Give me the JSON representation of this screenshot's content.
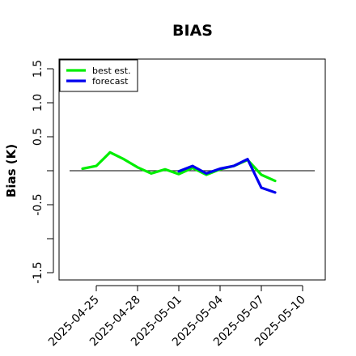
{
  "chart_data": {
    "type": "line",
    "title": "BIAS",
    "ylabel": "Bias (K)",
    "xlabel": "",
    "ylim": [
      -1.6,
      1.6
    ],
    "yticks": [
      -1.5,
      -1.0,
      -0.5,
      0.0,
      0.5,
      1.0,
      1.5
    ],
    "ytick_labels": [
      "-1.5",
      "",
      "-0.5",
      "",
      "0.5",
      "1.0",
      "1.5"
    ],
    "xlim": [
      "2025-04-22",
      "2025-05-12"
    ],
    "xticks": [
      "2025-04-25",
      "2025-04-28",
      "2025-05-01",
      "2025-05-04",
      "2025-05-07",
      "2025-05-10"
    ],
    "highlight_tick": "2025-05-01",
    "reference_line": 0.0,
    "legend_position": "top-left",
    "series": [
      {
        "name": "best est.",
        "color": "#00ee00",
        "x": [
          "2025-04-24",
          "2025-04-25",
          "2025-04-26",
          "2025-04-27",
          "2025-04-28",
          "2025-04-29",
          "2025-04-30",
          "2025-05-01",
          "2025-05-02",
          "2025-05-03",
          "2025-05-04",
          "2025-05-05",
          "2025-05-06",
          "2025-05-07",
          "2025-05-08"
        ],
        "values": [
          0.03,
          0.07,
          0.27,
          0.17,
          0.05,
          -0.04,
          0.02,
          -0.05,
          0.04,
          -0.06,
          0.02,
          0.07,
          0.16,
          -0.06,
          -0.15
        ]
      },
      {
        "name": "forecast",
        "color": "#0000ee",
        "x": [
          "2025-05-01",
          "2025-05-02",
          "2025-05-03",
          "2025-05-04",
          "2025-05-05",
          "2025-05-06",
          "2025-05-07",
          "2025-05-08"
        ],
        "values": [
          -0.01,
          0.07,
          -0.04,
          0.03,
          0.07,
          0.17,
          -0.25,
          -0.32
        ]
      }
    ]
  }
}
